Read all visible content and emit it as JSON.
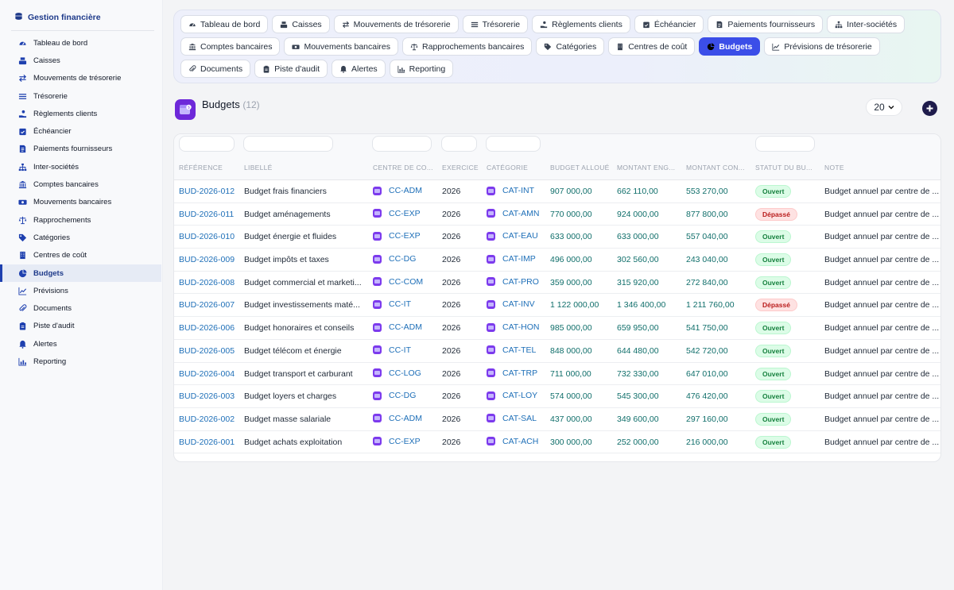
{
  "sidebar": {
    "title": "Gestion financière",
    "items": [
      {
        "label": "Tableau de bord",
        "icon": "gauge-icon"
      },
      {
        "label": "Caisses",
        "icon": "cash-register-icon"
      },
      {
        "label": "Mouvements de trésorerie",
        "icon": "arrows-exchange-icon"
      },
      {
        "label": "Trésorerie",
        "icon": "list-icon"
      },
      {
        "label": "Règlements clients",
        "icon": "hand-coin-icon"
      },
      {
        "label": "Échéancier",
        "icon": "calendar-check-icon"
      },
      {
        "label": "Paiements fournisseurs",
        "icon": "invoice-icon"
      },
      {
        "label": "Inter-sociétés",
        "icon": "sitemap-icon"
      },
      {
        "label": "Comptes bancaires",
        "icon": "bank-icon"
      },
      {
        "label": "Mouvements bancaires",
        "icon": "money-bill-icon"
      },
      {
        "label": "Rapprochements",
        "icon": "scale-icon"
      },
      {
        "label": "Catégories",
        "icon": "tags-icon"
      },
      {
        "label": "Centres de coût",
        "icon": "building-icon"
      },
      {
        "label": "Budgets",
        "icon": "pie-chart-icon",
        "active": true
      },
      {
        "label": "Prévisions",
        "icon": "trend-chart-icon"
      },
      {
        "label": "Documents",
        "icon": "paperclip-icon"
      },
      {
        "label": "Piste d'audit",
        "icon": "clipboard-icon"
      },
      {
        "label": "Alertes",
        "icon": "bell-icon"
      },
      {
        "label": "Reporting",
        "icon": "bar-chart-icon"
      }
    ]
  },
  "tabs": [
    {
      "label": "Tableau de bord",
      "icon": "gauge-icon"
    },
    {
      "label": "Caisses",
      "icon": "cash-register-icon"
    },
    {
      "label": "Mouvements de trésorerie",
      "icon": "arrows-exchange-icon"
    },
    {
      "label": "Trésorerie",
      "icon": "list-icon"
    },
    {
      "label": "Règlements clients",
      "icon": "hand-coin-icon"
    },
    {
      "label": "Échéancier",
      "icon": "calendar-check-icon"
    },
    {
      "label": "Paiements fournisseurs",
      "icon": "invoice-icon"
    },
    {
      "label": "Inter-sociétés",
      "icon": "sitemap-icon"
    },
    {
      "label": "Comptes bancaires",
      "icon": "bank-icon"
    },
    {
      "label": "Mouvements bancaires",
      "icon": "money-bill-icon"
    },
    {
      "label": "Rapprochements bancaires",
      "icon": "scale-icon"
    },
    {
      "label": "Catégories",
      "icon": "tags-icon"
    },
    {
      "label": "Centres de coût",
      "icon": "building-icon"
    },
    {
      "label": "Budgets",
      "icon": "pie-chart-icon",
      "active": true
    },
    {
      "label": "Prévisions de trésorerie",
      "icon": "trend-chart-icon"
    },
    {
      "label": "Documents",
      "icon": "paperclip-icon"
    },
    {
      "label": "Piste d'audit",
      "icon": "clipboard-icon"
    },
    {
      "label": "Alertes",
      "icon": "bell-icon"
    },
    {
      "label": "Reporting",
      "icon": "bar-chart-icon"
    }
  ],
  "page": {
    "title": "Budgets",
    "count": "(12)",
    "per_page": "20"
  },
  "table": {
    "columns": [
      "RÉFÉRENCE",
      "LIBELLÉ",
      "CENTRE DE CO...",
      "EXERCICE",
      "CATÉGORIE",
      "BUDGET ALLOUÉ",
      "MONTANT ENG...",
      "MONTANT CON...",
      "STATUT DU BU...",
      "NOTE"
    ],
    "rows": [
      {
        "ref": "BUD-2026-012",
        "libelle": "Budget frais financiers",
        "centre": "CC-ADM",
        "exercice": "2026",
        "categorie": "CAT-INT",
        "alloue": "907 000,00",
        "engage": "662 110,00",
        "consomme": "553 270,00",
        "statut": "Ouvert",
        "note": "Budget annuel par centre de ..."
      },
      {
        "ref": "BUD-2026-011",
        "libelle": "Budget aménagements",
        "centre": "CC-EXP",
        "exercice": "2026",
        "categorie": "CAT-AMN",
        "alloue": "770 000,00",
        "engage": "924 000,00",
        "consomme": "877 800,00",
        "statut": "Dépassé",
        "note": "Budget annuel par centre de ..."
      },
      {
        "ref": "BUD-2026-010",
        "libelle": "Budget énergie et fluides",
        "centre": "CC-EXP",
        "exercice": "2026",
        "categorie": "CAT-EAU",
        "alloue": "633 000,00",
        "engage": "633 000,00",
        "consomme": "557 040,00",
        "statut": "Ouvert",
        "note": "Budget annuel par centre de ..."
      },
      {
        "ref": "BUD-2026-009",
        "libelle": "Budget impôts et taxes",
        "centre": "CC-DG",
        "exercice": "2026",
        "categorie": "CAT-IMP",
        "alloue": "496 000,00",
        "engage": "302 560,00",
        "consomme": "243 040,00",
        "statut": "Ouvert",
        "note": "Budget annuel par centre de ..."
      },
      {
        "ref": "BUD-2026-008",
        "libelle": "Budget commercial et marketi...",
        "centre": "CC-COM",
        "exercice": "2026",
        "categorie": "CAT-PRO",
        "alloue": "359 000,00",
        "engage": "315 920,00",
        "consomme": "272 840,00",
        "statut": "Ouvert",
        "note": "Budget annuel par centre de ..."
      },
      {
        "ref": "BUD-2026-007",
        "libelle": "Budget investissements maté...",
        "centre": "CC-IT",
        "exercice": "2026",
        "categorie": "CAT-INV",
        "alloue": "1 122 000,00",
        "engage": "1 346 400,00",
        "consomme": "1 211 760,00",
        "statut": "Dépassé",
        "note": "Budget annuel par centre de ..."
      },
      {
        "ref": "BUD-2026-006",
        "libelle": "Budget honoraires et conseils",
        "centre": "CC-ADM",
        "exercice": "2026",
        "categorie": "CAT-HON",
        "alloue": "985 000,00",
        "engage": "659 950,00",
        "consomme": "541 750,00",
        "statut": "Ouvert",
        "note": "Budget annuel par centre de ..."
      },
      {
        "ref": "BUD-2026-005",
        "libelle": "Budget télécom et énergie",
        "centre": "CC-IT",
        "exercice": "2026",
        "categorie": "CAT-TEL",
        "alloue": "848 000,00",
        "engage": "644 480,00",
        "consomme": "542 720,00",
        "statut": "Ouvert",
        "note": "Budget annuel par centre de ..."
      },
      {
        "ref": "BUD-2026-004",
        "libelle": "Budget transport et carburant",
        "centre": "CC-LOG",
        "exercice": "2026",
        "categorie": "CAT-TRP",
        "alloue": "711 000,00",
        "engage": "732 330,00",
        "consomme": "647 010,00",
        "statut": "Ouvert",
        "note": "Budget annuel par centre de ..."
      },
      {
        "ref": "BUD-2026-003",
        "libelle": "Budget loyers et charges",
        "centre": "CC-DG",
        "exercice": "2026",
        "categorie": "CAT-LOY",
        "alloue": "574 000,00",
        "engage": "545 300,00",
        "consomme": "476 420,00",
        "statut": "Ouvert",
        "note": "Budget annuel par centre de ..."
      },
      {
        "ref": "BUD-2026-002",
        "libelle": "Budget masse salariale",
        "centre": "CC-ADM",
        "exercice": "2026",
        "categorie": "CAT-SAL",
        "alloue": "437 000,00",
        "engage": "349 600,00",
        "consomme": "297 160,00",
        "statut": "Ouvert",
        "note": "Budget annuel par centre de ..."
      },
      {
        "ref": "BUD-2026-001",
        "libelle": "Budget achats exploitation",
        "centre": "CC-EXP",
        "exercice": "2026",
        "categorie": "CAT-ACH",
        "alloue": "300 000,00",
        "engage": "252 000,00",
        "consomme": "216 000,00",
        "statut": "Ouvert",
        "note": "Budget annuel par centre de ..."
      }
    ]
  },
  "colors": {
    "accent": "#3b4ee8",
    "link": "#1e6fb8",
    "amount": "#0f6e6a",
    "status_ok": "#15803d",
    "status_over": "#b91c1c"
  }
}
